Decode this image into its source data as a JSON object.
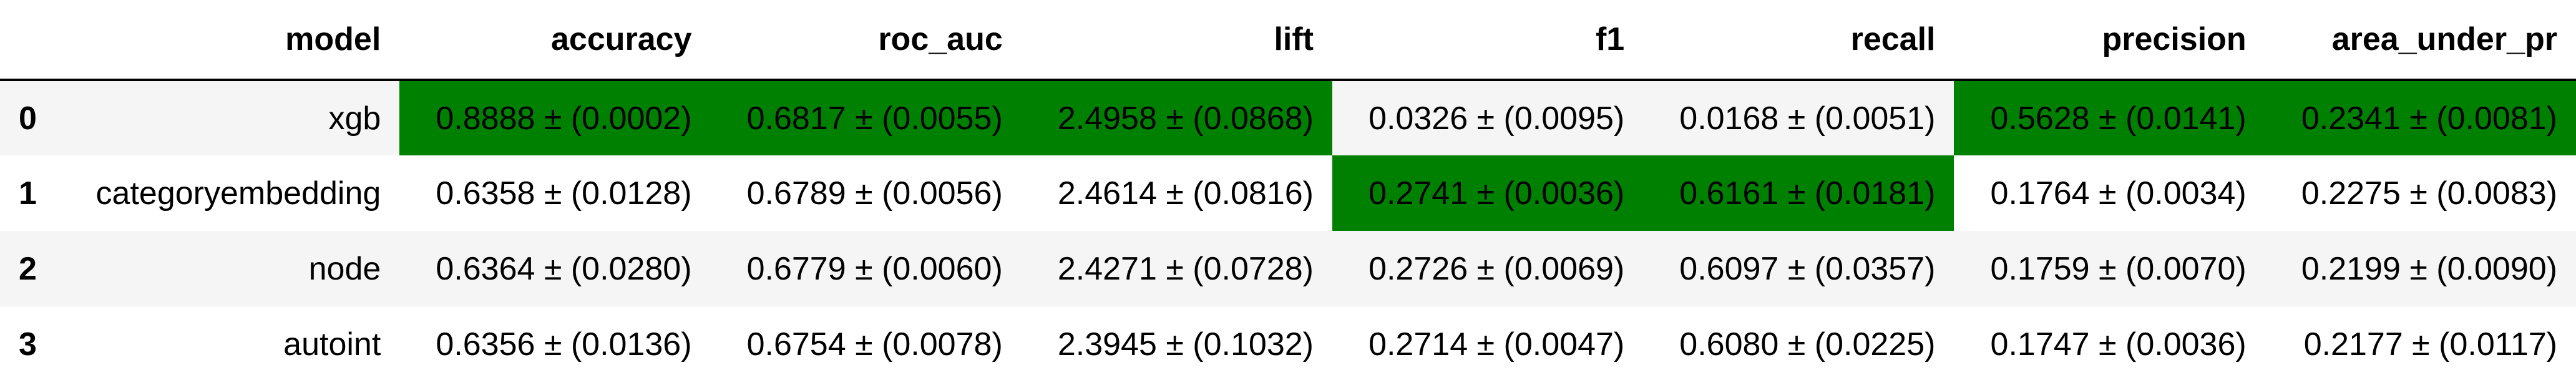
{
  "table": {
    "index_header": "",
    "columns": [
      "model",
      "accuracy",
      "roc_auc",
      "lift",
      "f1",
      "recall",
      "precision",
      "area_under_pr"
    ],
    "highlight_color": "#008000",
    "rows": [
      {
        "index": "0",
        "cells": [
          "xgb",
          "0.8888 ± (0.0002)",
          "0.6817 ± (0.0055)",
          "2.4958 ± (0.0868)",
          "0.0326 ± (0.0095)",
          "0.0168 ± (0.0051)",
          "0.5628 ± (0.0141)",
          "0.2341 ± (0.0081)"
        ],
        "highlighted": [
          false,
          true,
          true,
          true,
          false,
          false,
          true,
          true
        ]
      },
      {
        "index": "1",
        "cells": [
          "categoryembedding",
          "0.6358 ± (0.0128)",
          "0.6789 ± (0.0056)",
          "2.4614 ± (0.0816)",
          "0.2741 ± (0.0036)",
          "0.6161 ± (0.0181)",
          "0.1764 ± (0.0034)",
          "0.2275 ± (0.0083)"
        ],
        "highlighted": [
          false,
          false,
          false,
          false,
          true,
          true,
          false,
          false
        ]
      },
      {
        "index": "2",
        "cells": [
          "node",
          "0.6364 ± (0.0280)",
          "0.6779 ± (0.0060)",
          "2.4271 ± (0.0728)",
          "0.2726 ± (0.0069)",
          "0.6097 ± (0.0357)",
          "0.1759 ± (0.0070)",
          "0.2199 ± (0.0090)"
        ],
        "highlighted": [
          false,
          false,
          false,
          false,
          false,
          false,
          false,
          false
        ]
      },
      {
        "index": "3",
        "cells": [
          "autoint",
          "0.6356 ± (0.0136)",
          "0.6754 ± (0.0078)",
          "2.3945 ± (0.1032)",
          "0.2714 ± (0.0047)",
          "0.6080 ± (0.0225)",
          "0.1747 ± (0.0036)",
          "0.2177 ± (0.0117)"
        ],
        "highlighted": [
          false,
          false,
          false,
          false,
          false,
          false,
          false,
          false
        ]
      }
    ]
  }
}
